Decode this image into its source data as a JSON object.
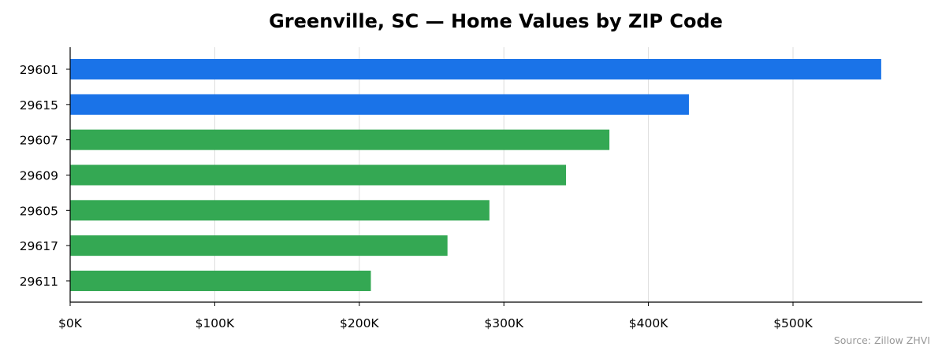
{
  "chart_data": {
    "type": "bar",
    "orientation": "horizontal",
    "title": "Greenville, SC — Home Values by ZIP Code",
    "xlabel": "",
    "ylabel": "",
    "categories": [
      "29601",
      "29615",
      "29607",
      "29609",
      "29605",
      "29617",
      "29611"
    ],
    "values": [
      561000,
      428000,
      373000,
      343000,
      290000,
      261000,
      208000
    ],
    "bar_colors": [
      "#1a73e8",
      "#1a73e8",
      "#34a853",
      "#34a853",
      "#34a853",
      "#34a853",
      "#34a853"
    ],
    "xlim": [
      0,
      590000
    ],
    "xticks": [
      0,
      100000,
      200000,
      300000,
      400000,
      500000
    ],
    "xtick_labels": [
      "$0K",
      "$100K",
      "$200K",
      "$300K",
      "$400K",
      "$500K"
    ],
    "grid": "vertical",
    "legend": "none",
    "source": "Source: Zillow ZHVI"
  }
}
